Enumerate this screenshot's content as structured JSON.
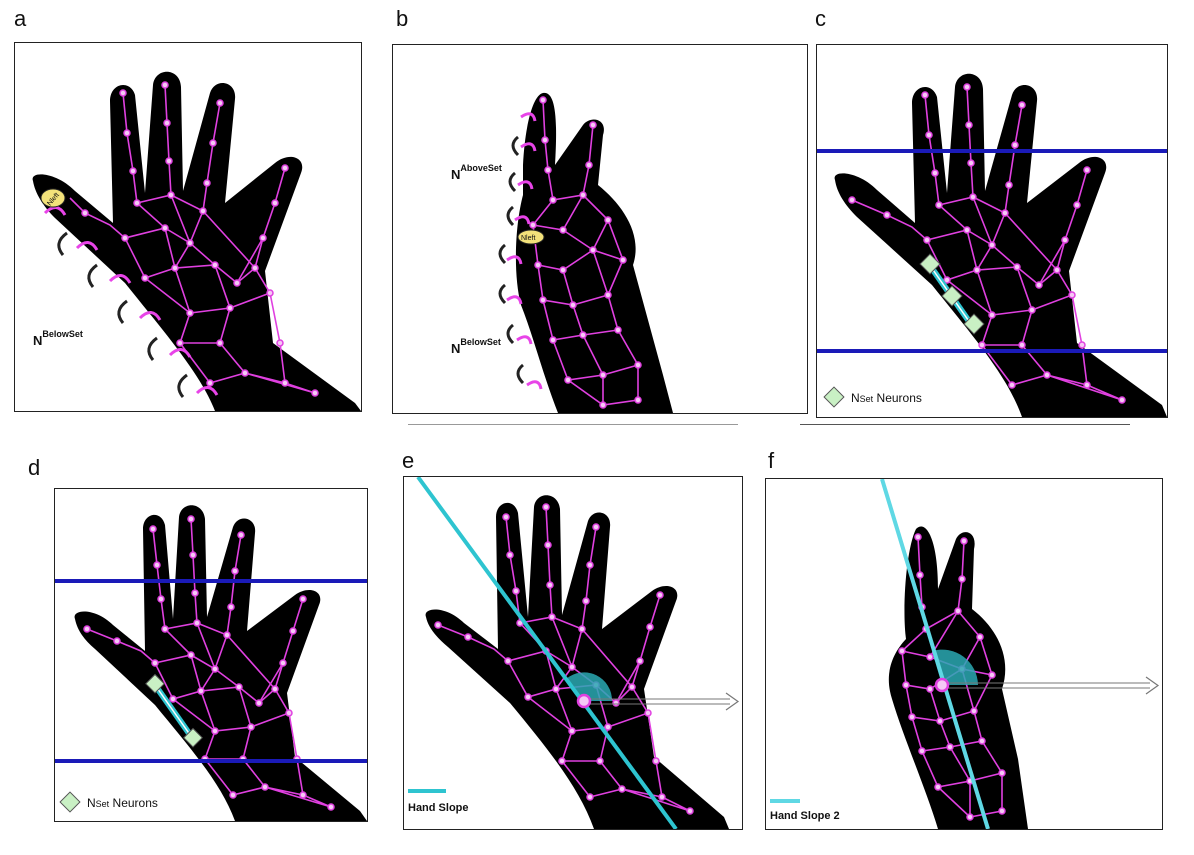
{
  "panels": [
    {
      "letter": "a",
      "labels": {
        "nleft": "Nleft",
        "below": {
          "base": "N",
          "sup": "BelowSet"
        }
      }
    },
    {
      "letter": "b",
      "labels": {
        "nleft": "Nleft",
        "above": {
          "base": "N",
          "sup": "AboveSet"
        },
        "below": {
          "base": "N",
          "sup": "BelowSet"
        }
      }
    },
    {
      "letter": "c",
      "legend": {
        "base": "N",
        "sub": "Set",
        "rest": " Neurons"
      }
    },
    {
      "letter": "d",
      "legend": {
        "base": "N",
        "sub": "Set",
        "rest": " Neurons"
      }
    },
    {
      "letter": "e",
      "legend": "Hand Slope"
    },
    {
      "letter": "f",
      "legend": "Hand Slope 2"
    }
  ],
  "colors": {
    "hand": "#000000",
    "mesh": "#e040e0",
    "node": "#f5c8f5",
    "blue_line": "#1a1ab8",
    "cyan": "#2ec4d0",
    "marker_fill": "#c9f0c4",
    "arrow_pink": "#e844e8",
    "nleft_fill": "#f3e27a"
  }
}
